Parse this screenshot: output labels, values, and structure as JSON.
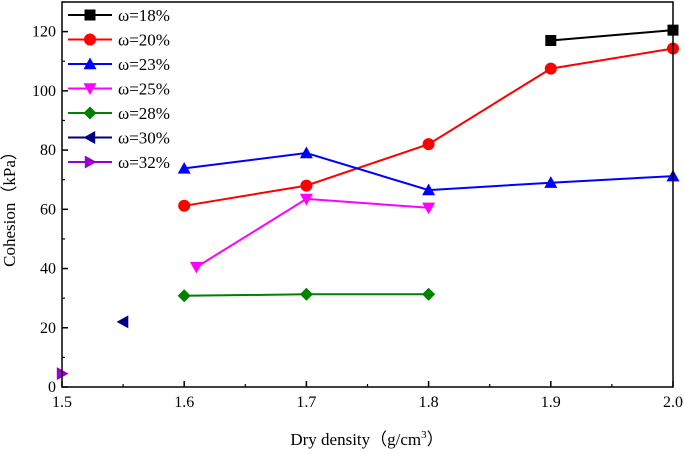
{
  "chart_data": {
    "type": "line",
    "title": "",
    "xlabel": "Dry density（g/cm",
    "xlabel_sup": "3",
    "xlabel_end": "）",
    "ylabel": "Cohesion（kPa）",
    "xlim": [
      1.5,
      2.0
    ],
    "ylim": [
      0,
      130
    ],
    "xticks": [
      "1.5",
      "1.6",
      "1.7",
      "1.8",
      "1.9",
      "2.0"
    ],
    "yticks": [
      "0",
      "20",
      "40",
      "60",
      "80",
      "100",
      "120"
    ],
    "legend_position": "top-left",
    "series": [
      {
        "name": "ω=18%",
        "color": "#000000",
        "marker": "square",
        "x": [
          1.9,
          2.0
        ],
        "y": [
          117,
          120.5
        ]
      },
      {
        "name": "ω=20%",
        "color": "#ff0000",
        "marker": "circle",
        "x": [
          1.6,
          1.7,
          1.8,
          1.9,
          2.0
        ],
        "y": [
          61.2,
          68,
          82,
          107.5,
          114.3
        ]
      },
      {
        "name": "ω=23%",
        "color": "#0000ff",
        "marker": "triangle-up",
        "x": [
          1.6,
          1.7,
          1.8,
          1.9,
          2.0
        ],
        "y": [
          73.8,
          79,
          66.5,
          69,
          71.2
        ]
      },
      {
        "name": "ω=25%",
        "color": "#ff00ff",
        "marker": "triangle-down",
        "x": [
          1.61,
          1.7,
          1.8
        ],
        "y": [
          40.5,
          63.5,
          60.5
        ]
      },
      {
        "name": "ω=28%",
        "color": "#008000",
        "marker": "diamond",
        "x": [
          1.6,
          1.7,
          1.8
        ],
        "y": [
          30.8,
          31.3,
          31.3
        ]
      },
      {
        "name": "ω=30%",
        "color": "#000080",
        "marker": "triangle-left",
        "x": [
          1.55
        ],
        "y": [
          22
        ]
      },
      {
        "name": "ω=32%",
        "color": "#9900cc",
        "marker": "triangle-right",
        "x": [
          1.5
        ],
        "y": [
          4.5
        ]
      }
    ]
  }
}
